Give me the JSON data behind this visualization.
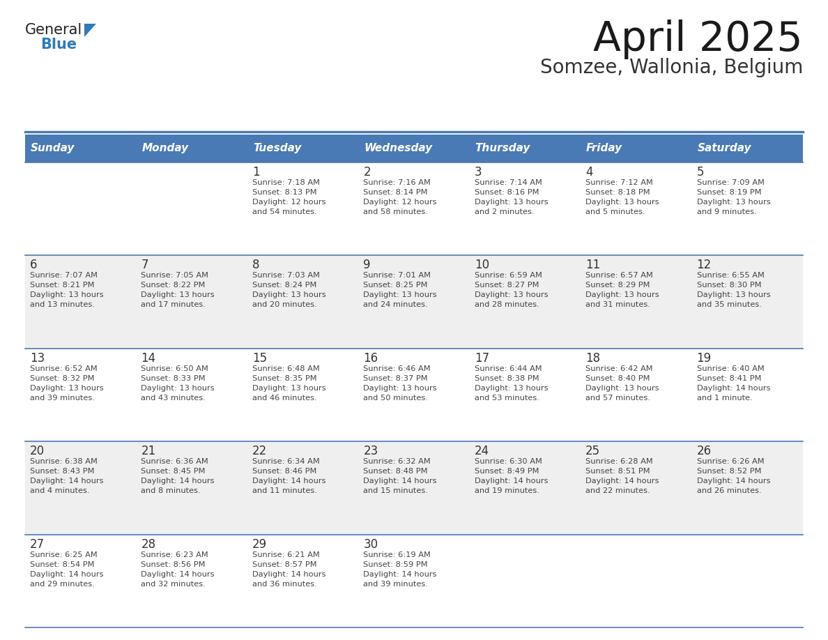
{
  "title": "April 2025",
  "subtitle": "Somzee, Wallonia, Belgium",
  "header_color": "#4a7ab5",
  "header_text_color": "#ffffff",
  "cell_bg_even": "#efefef",
  "cell_bg_odd": "#ffffff",
  "day_headers": [
    "Sunday",
    "Monday",
    "Tuesday",
    "Wednesday",
    "Thursday",
    "Friday",
    "Saturday"
  ],
  "text_color": "#444444",
  "number_color": "#333333",
  "separator_color": "#4a7ab5",
  "logo_general_color": "#222222",
  "logo_blue_color": "#2f7ab8",
  "logo_triangle_color": "#2f7ab8",
  "weeks": [
    [
      {
        "day": "",
        "info": ""
      },
      {
        "day": "",
        "info": ""
      },
      {
        "day": "1",
        "info": "Sunrise: 7:18 AM\nSunset: 8:13 PM\nDaylight: 12 hours\nand 54 minutes."
      },
      {
        "day": "2",
        "info": "Sunrise: 7:16 AM\nSunset: 8:14 PM\nDaylight: 12 hours\nand 58 minutes."
      },
      {
        "day": "3",
        "info": "Sunrise: 7:14 AM\nSunset: 8:16 PM\nDaylight: 13 hours\nand 2 minutes."
      },
      {
        "day": "4",
        "info": "Sunrise: 7:12 AM\nSunset: 8:18 PM\nDaylight: 13 hours\nand 5 minutes."
      },
      {
        "day": "5",
        "info": "Sunrise: 7:09 AM\nSunset: 8:19 PM\nDaylight: 13 hours\nand 9 minutes."
      }
    ],
    [
      {
        "day": "6",
        "info": "Sunrise: 7:07 AM\nSunset: 8:21 PM\nDaylight: 13 hours\nand 13 minutes."
      },
      {
        "day": "7",
        "info": "Sunrise: 7:05 AM\nSunset: 8:22 PM\nDaylight: 13 hours\nand 17 minutes."
      },
      {
        "day": "8",
        "info": "Sunrise: 7:03 AM\nSunset: 8:24 PM\nDaylight: 13 hours\nand 20 minutes."
      },
      {
        "day": "9",
        "info": "Sunrise: 7:01 AM\nSunset: 8:25 PM\nDaylight: 13 hours\nand 24 minutes."
      },
      {
        "day": "10",
        "info": "Sunrise: 6:59 AM\nSunset: 8:27 PM\nDaylight: 13 hours\nand 28 minutes."
      },
      {
        "day": "11",
        "info": "Sunrise: 6:57 AM\nSunset: 8:29 PM\nDaylight: 13 hours\nand 31 minutes."
      },
      {
        "day": "12",
        "info": "Sunrise: 6:55 AM\nSunset: 8:30 PM\nDaylight: 13 hours\nand 35 minutes."
      }
    ],
    [
      {
        "day": "13",
        "info": "Sunrise: 6:52 AM\nSunset: 8:32 PM\nDaylight: 13 hours\nand 39 minutes."
      },
      {
        "day": "14",
        "info": "Sunrise: 6:50 AM\nSunset: 8:33 PM\nDaylight: 13 hours\nand 43 minutes."
      },
      {
        "day": "15",
        "info": "Sunrise: 6:48 AM\nSunset: 8:35 PM\nDaylight: 13 hours\nand 46 minutes."
      },
      {
        "day": "16",
        "info": "Sunrise: 6:46 AM\nSunset: 8:37 PM\nDaylight: 13 hours\nand 50 minutes."
      },
      {
        "day": "17",
        "info": "Sunrise: 6:44 AM\nSunset: 8:38 PM\nDaylight: 13 hours\nand 53 minutes."
      },
      {
        "day": "18",
        "info": "Sunrise: 6:42 AM\nSunset: 8:40 PM\nDaylight: 13 hours\nand 57 minutes."
      },
      {
        "day": "19",
        "info": "Sunrise: 6:40 AM\nSunset: 8:41 PM\nDaylight: 14 hours\nand 1 minute."
      }
    ],
    [
      {
        "day": "20",
        "info": "Sunrise: 6:38 AM\nSunset: 8:43 PM\nDaylight: 14 hours\nand 4 minutes."
      },
      {
        "day": "21",
        "info": "Sunrise: 6:36 AM\nSunset: 8:45 PM\nDaylight: 14 hours\nand 8 minutes."
      },
      {
        "day": "22",
        "info": "Sunrise: 6:34 AM\nSunset: 8:46 PM\nDaylight: 14 hours\nand 11 minutes."
      },
      {
        "day": "23",
        "info": "Sunrise: 6:32 AM\nSunset: 8:48 PM\nDaylight: 14 hours\nand 15 minutes."
      },
      {
        "day": "24",
        "info": "Sunrise: 6:30 AM\nSunset: 8:49 PM\nDaylight: 14 hours\nand 19 minutes."
      },
      {
        "day": "25",
        "info": "Sunrise: 6:28 AM\nSunset: 8:51 PM\nDaylight: 14 hours\nand 22 minutes."
      },
      {
        "day": "26",
        "info": "Sunrise: 6:26 AM\nSunset: 8:52 PM\nDaylight: 14 hours\nand 26 minutes."
      }
    ],
    [
      {
        "day": "27",
        "info": "Sunrise: 6:25 AM\nSunset: 8:54 PM\nDaylight: 14 hours\nand 29 minutes."
      },
      {
        "day": "28",
        "info": "Sunrise: 6:23 AM\nSunset: 8:56 PM\nDaylight: 14 hours\nand 32 minutes."
      },
      {
        "day": "29",
        "info": "Sunrise: 6:21 AM\nSunset: 8:57 PM\nDaylight: 14 hours\nand 36 minutes."
      },
      {
        "day": "30",
        "info": "Sunrise: 6:19 AM\nSunset: 8:59 PM\nDaylight: 14 hours\nand 39 minutes."
      },
      {
        "day": "",
        "info": ""
      },
      {
        "day": "",
        "info": ""
      },
      {
        "day": "",
        "info": ""
      }
    ]
  ]
}
